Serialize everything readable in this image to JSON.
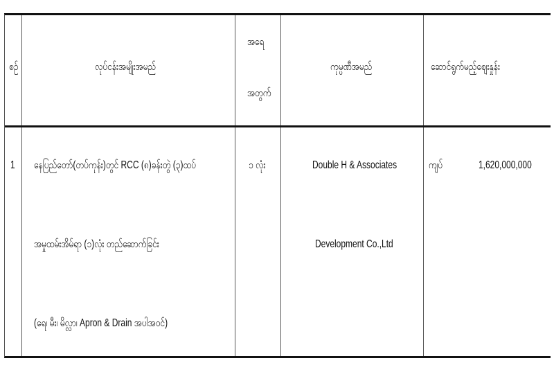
{
  "table": {
    "headers": [
      "စဉ်",
      "လုပ်ငန်းအမျိုးအမည်",
      "အရေ",
      "အတွက်",
      "ကုမ္ပဏီအမည်",
      "ဆောင်ရွက်မည့်စျေးနှုန်း"
    ],
    "rows": [
      {
        "no": "1",
        "work_lines": [
          "နေပြည်တော်(တပ်ကုန်း)တွင် RCC (၈)ခန်းတွဲ (၃)ထပ်",
          "အမှုထမ်းအိမ်ရာ (၁)လုံး တည်ဆောက်ခြင်း",
          "(ရေ၊ မီး၊ မိလ္လာ၊ Apron & Drain အပါအဝင်)"
        ],
        "quantity": "၁ လုံး",
        "company_lines": [
          "Double H & Associates",
          "Development Co.,Ltd"
        ],
        "currency": "ကျပ်",
        "price": "1,620,000,000"
      }
    ]
  }
}
